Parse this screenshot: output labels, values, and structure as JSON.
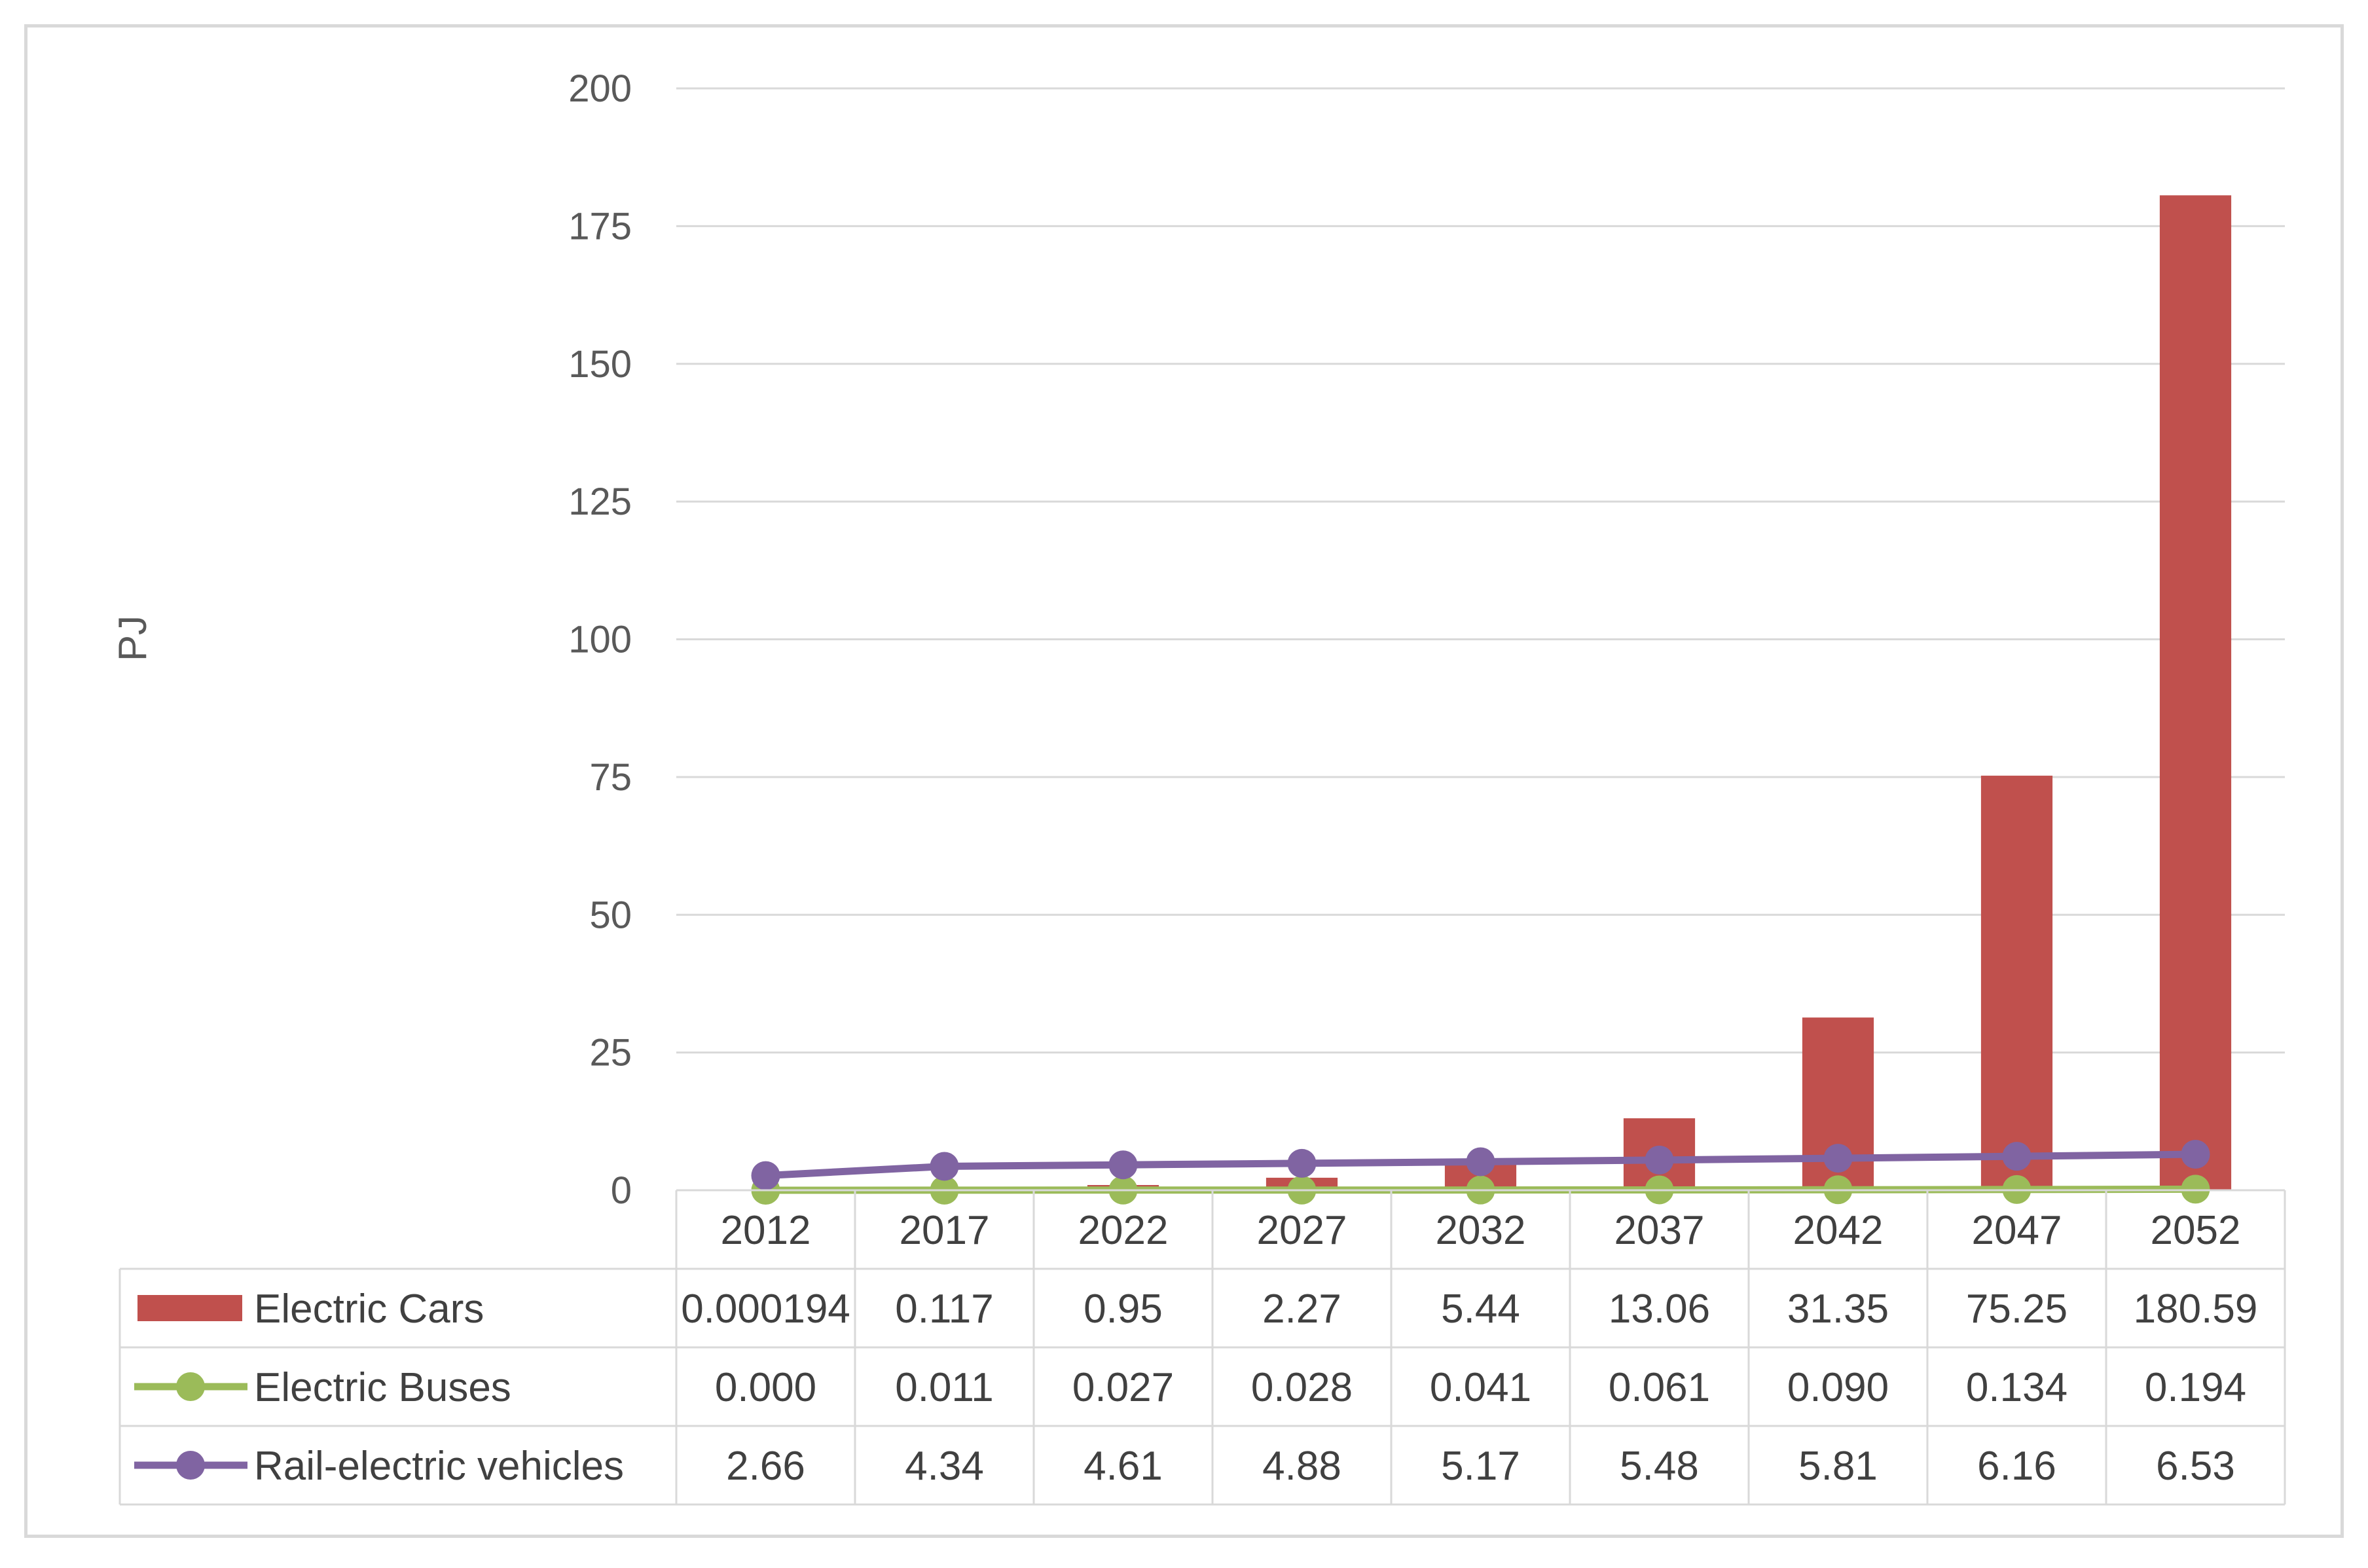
{
  "chart_data": {
    "type": "bar",
    "title": "",
    "xlabel": "",
    "ylabel": "PJ",
    "ylim": [
      0,
      200
    ],
    "yticks": [
      0,
      25,
      50,
      75,
      100,
      125,
      150,
      175,
      200
    ],
    "grid": true,
    "legend": "data-table",
    "categories": [
      "2012",
      "2017",
      "2022",
      "2027",
      "2032",
      "2037",
      "2042",
      "2047",
      "2052"
    ],
    "series": [
      {
        "name": "Electric Cars",
        "kind": "bar",
        "color": "#c0504d",
        "values": [
          0.000194,
          0.117,
          0.95,
          2.27,
          5.44,
          13.06,
          31.35,
          75.25,
          180.59
        ],
        "labels": [
          "0.000194",
          "0.117",
          "0.95",
          "2.27",
          "5.44",
          "13.06",
          "31.35",
          "75.25",
          "180.59"
        ]
      },
      {
        "name": "Electric Buses",
        "kind": "line",
        "color": "#9bbb59",
        "values": [
          0.0,
          0.011,
          0.027,
          0.028,
          0.041,
          0.061,
          0.09,
          0.134,
          0.194
        ],
        "labels": [
          "0.000",
          "0.011",
          "0.027",
          "0.028",
          "0.041",
          "0.061",
          "0.090",
          "0.134",
          "0.194"
        ]
      },
      {
        "name": "Rail-electric vehicles",
        "kind": "line",
        "color": "#8064a2",
        "values": [
          2.66,
          4.34,
          4.61,
          4.88,
          5.17,
          5.48,
          5.81,
          6.16,
          6.53
        ],
        "labels": [
          "2.66",
          "4.34",
          "4.61",
          "4.88",
          "5.17",
          "5.48",
          "5.81",
          "6.16",
          "6.53"
        ]
      }
    ]
  }
}
